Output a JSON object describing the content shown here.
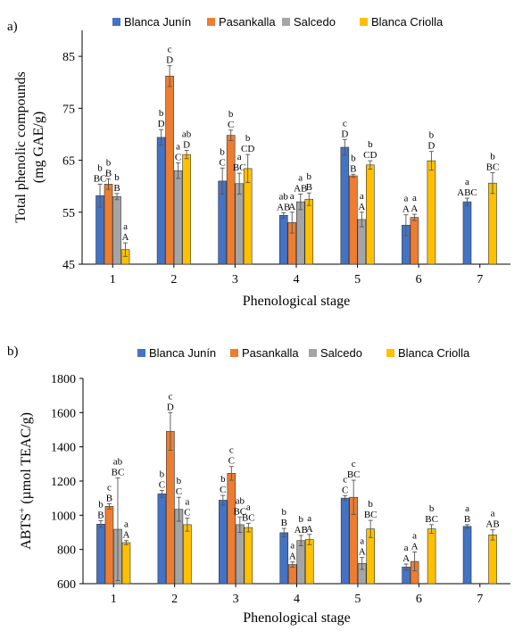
{
  "chart_data": [
    {
      "type": "bar",
      "panel_label": "a)",
      "series_names": [
        "Blanca Junín",
        "Pasankalla",
        "Salcedo",
        "Blanca Criolla"
      ],
      "colors": [
        "#4472c4",
        "#ed7d31",
        "#a5a5a5",
        "#ffc000"
      ],
      "categories": [
        "1",
        "2",
        "3",
        "4",
        "5",
        "6",
        "7"
      ],
      "xlabel": "Phenological stage",
      "ylabel_line1": "Total phenolic compounds",
      "ylabel_line2": "(mg GAE/g)",
      "ylim": [
        45,
        90
      ],
      "yticks": [
        45,
        55,
        65,
        75,
        85
      ],
      "grid": false,
      "legend_position": "top",
      "series": [
        {
          "name": "Blanca Junín",
          "values": [
            58.2,
            69.4,
            61.0,
            54.4,
            67.5,
            52.5,
            57.0
          ],
          "errors": [
            2.2,
            1.5,
            2.5,
            0.5,
            1.5,
            2.0,
            0.7
          ],
          "labels_lower": [
            "b",
            "b",
            "b",
            "ab",
            "c",
            "a",
            "a"
          ],
          "labels_upper": [
            "BC",
            "D",
            "C",
            "AB",
            "D",
            "A",
            "ABC"
          ]
        },
        {
          "name": "Pasankalla",
          "values": [
            60.4,
            81.2,
            69.8,
            53.0,
            62.0,
            54.0,
            null
          ],
          "errors": [
            1.0,
            2.0,
            1.0,
            2.0,
            0.3,
            0.6,
            null
          ],
          "labels_lower": [
            "b",
            "c",
            "b",
            "a",
            "b",
            "a",
            null
          ],
          "labels_upper": [
            "B",
            "D",
            "C",
            "A",
            "B",
            "A",
            null
          ]
        },
        {
          "name": "Salcedo",
          "values": [
            58.0,
            63.0,
            60.5,
            57.0,
            53.6,
            null,
            null
          ],
          "errors": [
            0.6,
            1.5,
            2.0,
            1.5,
            1.4,
            null,
            null
          ],
          "labels_lower": [
            "b",
            "a",
            "a",
            "a",
            "a",
            null,
            null
          ],
          "labels_upper": [
            "B",
            "C",
            "BC",
            "AB",
            "A",
            null,
            null
          ]
        },
        {
          "name": "Blanca Criolla",
          "values": [
            47.8,
            66.1,
            63.4,
            57.5,
            64.1,
            64.9,
            60.6
          ],
          "errors": [
            1.3,
            0.8,
            2.7,
            1.2,
            0.8,
            1.8,
            2.0
          ],
          "labels_lower": [
            "a",
            "ab",
            "b",
            "b",
            "b",
            "b",
            "b"
          ],
          "labels_upper": [
            "A",
            "D",
            "CD",
            "B",
            "CD",
            "D",
            "BC"
          ]
        }
      ]
    },
    {
      "type": "bar",
      "panel_label": "b)",
      "series_names": [
        "Blanca Junín",
        "Pasankalla",
        "Salcedo",
        "Blanca Criolla"
      ],
      "colors": [
        "#4472c4",
        "#ed7d31",
        "#a5a5a5",
        "#ffc000"
      ],
      "categories": [
        "1",
        "2",
        "3",
        "4",
        "5",
        "6",
        "7"
      ],
      "xlabel": "Phenological stage",
      "ylabel_main": "ABTS",
      "ylabel_sup": "+",
      "ylabel_rest": " (µmol TEAC/g)",
      "ylim": [
        600,
        1800
      ],
      "yticks": [
        600,
        800,
        1000,
        1200,
        1400,
        1600,
        1800
      ],
      "grid": false,
      "legend_position": "top",
      "series": [
        {
          "name": "Blanca Junín",
          "values": [
            948,
            1125,
            1088,
            898,
            1100,
            697,
            935
          ],
          "errors": [
            20,
            20,
            28,
            25,
            15,
            18,
            10
          ],
          "labels_lower": [
            "b",
            "b",
            "b",
            "b",
            "c",
            "a",
            "a"
          ],
          "labels_upper": [
            "B",
            "C",
            "C",
            "B",
            "C",
            "A",
            "B"
          ]
        },
        {
          "name": "Pasankalla",
          "values": [
            1052,
            1490,
            1245,
            712,
            1105,
            730,
            null
          ],
          "errors": [
            15,
            110,
            40,
            15,
            100,
            55,
            null
          ],
          "labels_lower": [
            "c",
            "c",
            "c",
            "a",
            "c",
            "a",
            null
          ],
          "labels_upper": [
            "B",
            "D",
            "C",
            "A",
            "BC",
            "A",
            null
          ]
        },
        {
          "name": "Salcedo",
          "values": [
            918,
            1035,
            945,
            852,
            718,
            null,
            null
          ],
          "errors": [
            300,
            70,
            45,
            30,
            35,
            null,
            null
          ],
          "labels_lower": [
            "ab",
            "b",
            "ab",
            "b",
            "a",
            null,
            null
          ],
          "labels_upper": [
            "BC",
            "C",
            "BC",
            "AB",
            "A",
            null,
            null
          ]
        },
        {
          "name": "Blanca Criolla",
          "values": [
            840,
            945,
            928,
            858,
            920,
            920,
            885
          ],
          "errors": [
            12,
            38,
            25,
            30,
            50,
            25,
            30
          ],
          "labels_lower": [
            "a",
            "a",
            "a",
            "a",
            "b",
            "b",
            "a"
          ],
          "labels_upper": [
            "A",
            "C",
            "BC",
            "A",
            "BC",
            "BC",
            "AB"
          ]
        }
      ]
    }
  ]
}
